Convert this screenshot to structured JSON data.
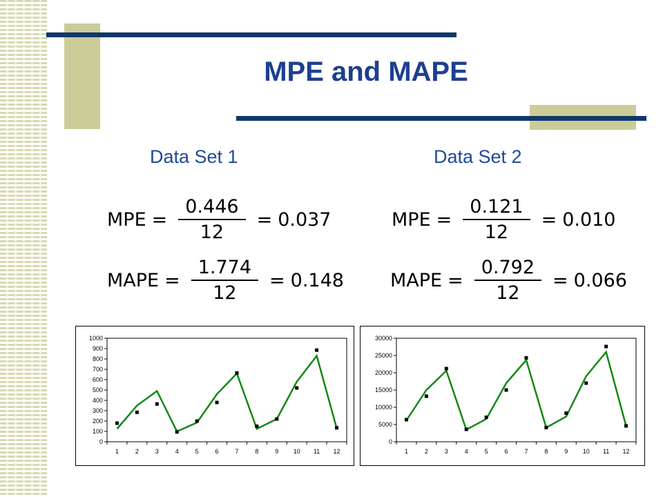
{
  "title": "MPE and MAPE",
  "colors": {
    "accent": "#1d3f8f",
    "deco": "#cccc99",
    "line": "#10386b",
    "series": "#118811"
  },
  "data_sets": [
    {
      "label": "Data Set 1",
      "mpe": {
        "lhs": "MPE",
        "numerator": "0.446",
        "denominator": "12",
        "result": "0.037"
      },
      "mape": {
        "lhs": "MAPE",
        "numerator": "1.774",
        "denominator": "12",
        "result": "0.148"
      }
    },
    {
      "label": "Data Set 2",
      "mpe": {
        "lhs": "MPE",
        "numerator": "0.121",
        "denominator": "12",
        "result": "0.010"
      },
      "mape": {
        "lhs": "MAPE",
        "numerator": "0.792",
        "denominator": "12",
        "result": "0.066"
      }
    }
  ],
  "chart_data": [
    {
      "type": "line",
      "x": [
        1,
        2,
        3,
        4,
        5,
        6,
        7,
        8,
        9,
        10,
        11,
        12
      ],
      "ylim": [
        0,
        1000
      ],
      "yticks": [
        0,
        100,
        200,
        300,
        400,
        500,
        600,
        700,
        800,
        900,
        1000
      ],
      "series": [
        {
          "style": "line",
          "values": [
            125,
            350,
            490,
            100,
            185,
            460,
            660,
            125,
            220,
            580,
            830,
            130
          ]
        },
        {
          "style": "points",
          "values": [
            180,
            285,
            365,
            95,
            200,
            380,
            665,
            150,
            220,
            520,
            885,
            135
          ]
        }
      ],
      "grid": false,
      "legend": "none"
    },
    {
      "type": "line",
      "x": [
        1,
        2,
        3,
        4,
        5,
        6,
        7,
        8,
        9,
        10,
        11,
        12
      ],
      "ylim": [
        0,
        30000
      ],
      "yticks": [
        0,
        5000,
        10000,
        15000,
        20000,
        25000,
        30000
      ],
      "series": [
        {
          "style": "line",
          "values": [
            6200,
            15000,
            20600,
            3500,
            6600,
            17000,
            23700,
            4100,
            7300,
            19000,
            26000,
            4600
          ]
        },
        {
          "style": "points",
          "values": [
            6400,
            13200,
            21200,
            3600,
            7100,
            15000,
            24300,
            4100,
            8300,
            17000,
            27600,
            4600
          ]
        }
      ],
      "grid": false,
      "legend": "none"
    }
  ]
}
